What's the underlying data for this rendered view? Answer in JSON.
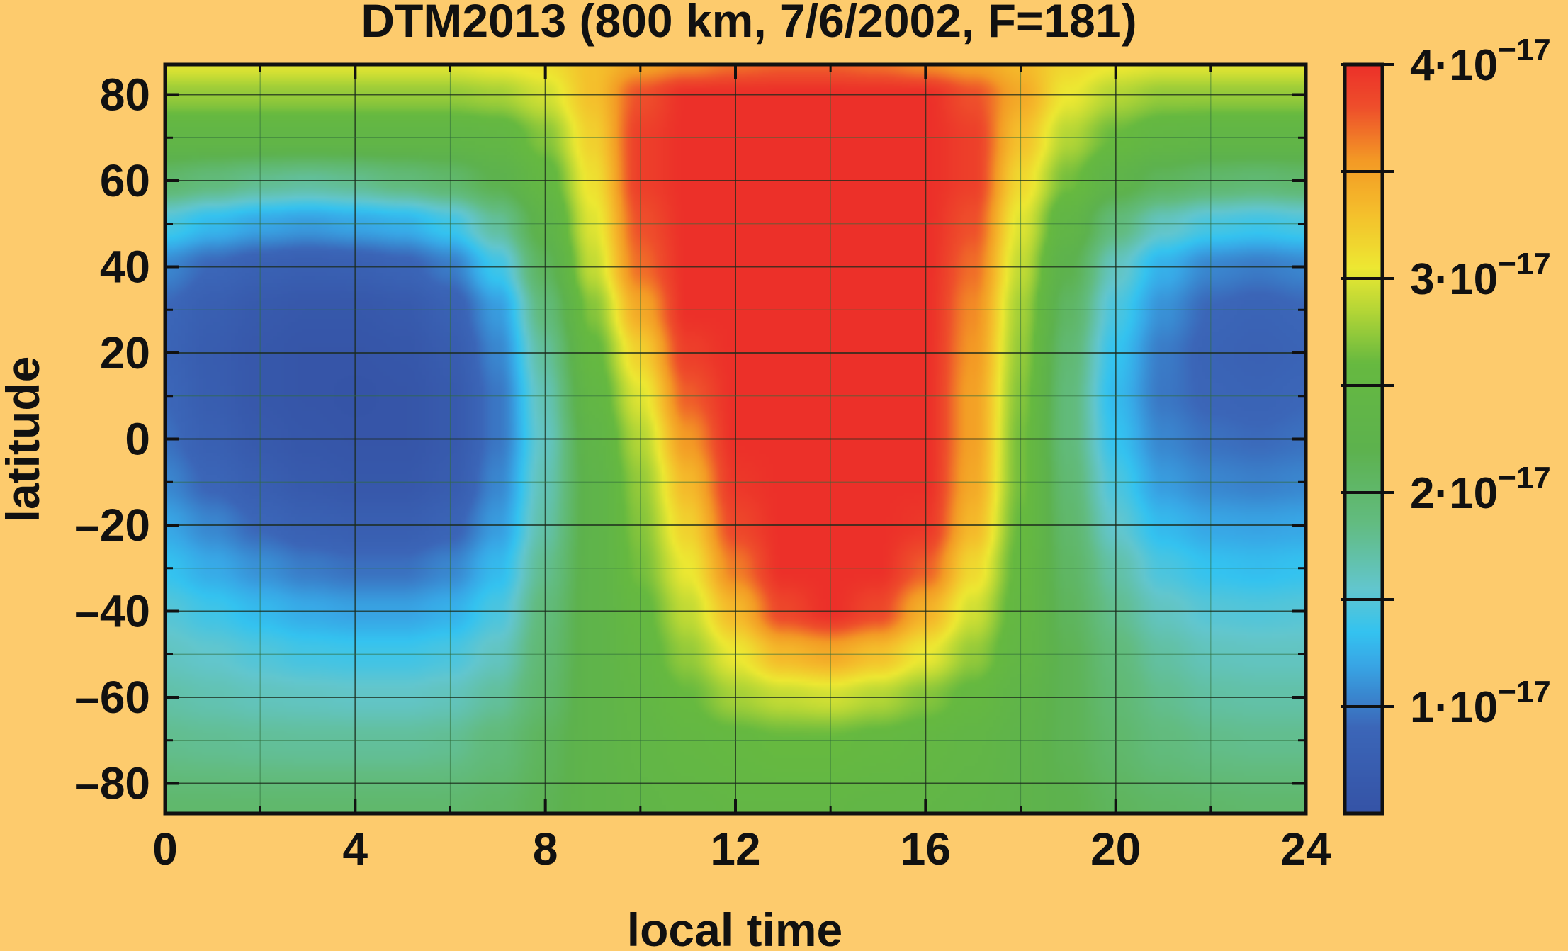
{
  "chart_data": {
    "type": "heatmap",
    "title": "DTM2013 (800 km, 7/6/2002, F=181)",
    "xlabel": "local time",
    "ylabel": "latitude",
    "xlim": [
      0,
      24
    ],
    "ylim": [
      -87,
      87
    ],
    "x_ticks": [
      0,
      4,
      8,
      12,
      16,
      20,
      24
    ],
    "x_tick_labels": [
      "0",
      "4",
      "8",
      "12",
      "16",
      "20",
      "24"
    ],
    "y_ticks": [
      80,
      60,
      40,
      20,
      0,
      -20,
      -40,
      -60,
      -80
    ],
    "y_tick_labels": [
      "80",
      "60",
      "40",
      "20",
      "0",
      "–20",
      "–40",
      "–60",
      "–80"
    ],
    "grid": true,
    "colorbar": {
      "range": [
        0.5,
        4.0
      ],
      "tick_values": [
        1,
        2,
        3,
        4
      ],
      "tick_labels": [
        {
          "mantissa": "1·10",
          "exponent": "−17"
        },
        {
          "mantissa": "2·10",
          "exponent": "−17"
        },
        {
          "mantissa": "3·10",
          "exponent": "−17"
        },
        {
          "mantissa": "4·10",
          "exponent": "−17"
        }
      ],
      "minor_ticks": [
        1.5,
        2.5,
        3.5
      ],
      "colors": [
        {
          "v": 0.5,
          "c": "#3553A6"
        },
        {
          "v": 0.9,
          "c": "#3B66B8"
        },
        {
          "v": 1.2,
          "c": "#38A7E6"
        },
        {
          "v": 1.35,
          "c": "#34C3F0"
        },
        {
          "v": 1.55,
          "c": "#62C6CE"
        },
        {
          "v": 1.85,
          "c": "#62BC82"
        },
        {
          "v": 2.2,
          "c": "#5DB24E"
        },
        {
          "v": 2.6,
          "c": "#66B940"
        },
        {
          "v": 2.85,
          "c": "#B4D636"
        },
        {
          "v": 3.05,
          "c": "#EDE832"
        },
        {
          "v": 3.3,
          "c": "#F4C02C"
        },
        {
          "v": 3.55,
          "c": "#F39A25"
        },
        {
          "v": 3.8,
          "c": "#EE4F2B"
        },
        {
          "v": 4.0,
          "c": "#EC3029"
        }
      ]
    },
    "field": {
      "resolution": [
        25,
        18
      ],
      "x": [
        0,
        1,
        2,
        3,
        4,
        5,
        6,
        7,
        8,
        9,
        10,
        11,
        12,
        13,
        14,
        15,
        16,
        17,
        18,
        19,
        20,
        21,
        22,
        23,
        24
      ],
      "y": [
        87,
        80,
        70,
        60,
        50,
        40,
        30,
        20,
        10,
        0,
        -10,
        -20,
        -30,
        -40,
        -50,
        -60,
        -70,
        -87
      ],
      "z": [
        [
          3.0,
          3.0,
          3.0,
          3.0,
          3.0,
          3.0,
          3.0,
          3.05,
          3.1,
          3.3,
          3.5,
          3.6,
          3.7,
          3.75,
          3.75,
          3.7,
          3.6,
          3.5,
          3.35,
          3.15,
          3.05,
          3.0,
          3.0,
          3.0,
          3.0
        ],
        [
          2.75,
          2.75,
          2.75,
          2.75,
          2.75,
          2.75,
          2.75,
          2.8,
          2.95,
          3.3,
          3.8,
          4.0,
          4.0,
          4.0,
          4.0,
          4.0,
          4.0,
          3.8,
          3.45,
          3.05,
          2.85,
          2.75,
          2.75,
          2.75,
          2.75
        ],
        [
          2.4,
          2.4,
          2.4,
          2.4,
          2.4,
          2.4,
          2.4,
          2.45,
          2.7,
          3.2,
          3.9,
          4.0,
          4.0,
          4.0,
          4.0,
          4.0,
          4.0,
          3.9,
          3.3,
          2.85,
          2.6,
          2.45,
          2.4,
          2.4,
          2.4
        ],
        [
          2.0,
          1.9,
          1.8,
          1.75,
          1.8,
          1.9,
          2.0,
          2.2,
          2.5,
          3.1,
          3.9,
          4.0,
          4.0,
          4.0,
          4.0,
          4.0,
          4.0,
          3.9,
          3.15,
          2.65,
          2.3,
          2.1,
          2.0,
          1.95,
          2.0
        ],
        [
          1.45,
          1.3,
          1.2,
          1.15,
          1.2,
          1.25,
          1.4,
          1.75,
          2.3,
          3.0,
          3.8,
          4.0,
          4.0,
          4.0,
          4.0,
          4.0,
          4.0,
          3.8,
          3.0,
          2.4,
          1.9,
          1.6,
          1.45,
          1.4,
          1.45
        ],
        [
          1.05,
          0.9,
          0.8,
          0.75,
          0.78,
          0.85,
          1.0,
          1.4,
          2.1,
          2.9,
          3.7,
          4.0,
          4.0,
          4.0,
          4.0,
          4.0,
          4.0,
          3.7,
          2.9,
          2.2,
          1.6,
          1.25,
          1.05,
          1.0,
          1.05
        ],
        [
          0.9,
          0.75,
          0.65,
          0.6,
          0.6,
          0.65,
          0.8,
          1.15,
          1.9,
          2.7,
          3.45,
          4.0,
          4.0,
          4.0,
          4.0,
          4.0,
          4.0,
          3.6,
          2.8,
          2.05,
          1.45,
          1.1,
          0.9,
          0.85,
          0.9
        ],
        [
          0.85,
          0.7,
          0.6,
          0.55,
          0.55,
          0.58,
          0.7,
          1.05,
          1.75,
          2.55,
          3.2,
          3.9,
          4.0,
          4.0,
          4.0,
          4.0,
          4.0,
          3.55,
          2.75,
          1.95,
          1.35,
          1.0,
          0.85,
          0.8,
          0.85
        ],
        [
          0.9,
          0.72,
          0.6,
          0.55,
          0.52,
          0.55,
          0.65,
          0.98,
          1.65,
          2.45,
          3.0,
          3.75,
          4.0,
          4.0,
          4.0,
          4.0,
          4.0,
          3.5,
          2.7,
          1.9,
          1.3,
          0.98,
          0.88,
          0.85,
          0.9
        ],
        [
          0.95,
          0.78,
          0.65,
          0.58,
          0.55,
          0.55,
          0.65,
          0.98,
          1.6,
          2.35,
          2.85,
          3.55,
          4.0,
          4.0,
          4.0,
          4.0,
          4.0,
          3.5,
          2.65,
          1.9,
          1.35,
          1.05,
          0.95,
          0.92,
          0.95
        ],
        [
          1.05,
          0.88,
          0.75,
          0.65,
          0.6,
          0.6,
          0.7,
          1.05,
          1.65,
          2.3,
          2.75,
          3.35,
          3.95,
          4.0,
          4.0,
          4.0,
          4.0,
          3.45,
          2.65,
          1.95,
          1.45,
          1.15,
          1.05,
          1.02,
          1.05
        ],
        [
          1.2,
          1.05,
          0.9,
          0.8,
          0.75,
          0.75,
          0.85,
          1.15,
          1.7,
          2.3,
          2.7,
          3.2,
          3.85,
          4.0,
          4.0,
          4.0,
          3.95,
          3.35,
          2.6,
          2.0,
          1.55,
          1.3,
          1.2,
          1.18,
          1.2
        ],
        [
          1.35,
          1.22,
          1.1,
          1.0,
          0.95,
          0.95,
          1.05,
          1.3,
          1.8,
          2.3,
          2.65,
          3.05,
          3.65,
          4.0,
          4.0,
          4.0,
          3.75,
          3.15,
          2.55,
          2.05,
          1.7,
          1.45,
          1.35,
          1.32,
          1.35
        ],
        [
          1.5,
          1.4,
          1.3,
          1.22,
          1.18,
          1.18,
          1.25,
          1.45,
          1.9,
          2.3,
          2.55,
          2.9,
          3.35,
          3.85,
          4.0,
          3.85,
          3.4,
          2.95,
          2.5,
          2.1,
          1.8,
          1.6,
          1.5,
          1.48,
          1.5
        ],
        [
          1.6,
          1.55,
          1.48,
          1.42,
          1.4,
          1.4,
          1.45,
          1.6,
          1.95,
          2.3,
          2.5,
          2.75,
          3.05,
          3.35,
          3.45,
          3.3,
          3.05,
          2.75,
          2.45,
          2.15,
          1.9,
          1.72,
          1.62,
          1.6,
          1.6
        ],
        [
          1.7,
          1.66,
          1.62,
          1.6,
          1.58,
          1.58,
          1.62,
          1.75,
          2.0,
          2.3,
          2.45,
          2.6,
          2.8,
          2.9,
          2.95,
          2.85,
          2.7,
          2.55,
          2.35,
          2.15,
          1.95,
          1.8,
          1.72,
          1.7,
          1.7
        ],
        [
          1.8,
          1.78,
          1.76,
          1.75,
          1.75,
          1.75,
          1.78,
          1.9,
          2.1,
          2.3,
          2.42,
          2.5,
          2.55,
          2.6,
          2.6,
          2.55,
          2.5,
          2.42,
          2.3,
          2.15,
          2.0,
          1.88,
          1.82,
          1.8,
          1.8
        ],
        [
          2.0,
          2.0,
          2.0,
          2.0,
          2.0,
          2.0,
          2.0,
          2.05,
          2.15,
          2.3,
          2.38,
          2.42,
          2.45,
          2.45,
          2.45,
          2.42,
          2.4,
          2.35,
          2.28,
          2.2,
          2.1,
          2.05,
          2.02,
          2.0,
          2.0
        ]
      ]
    }
  }
}
